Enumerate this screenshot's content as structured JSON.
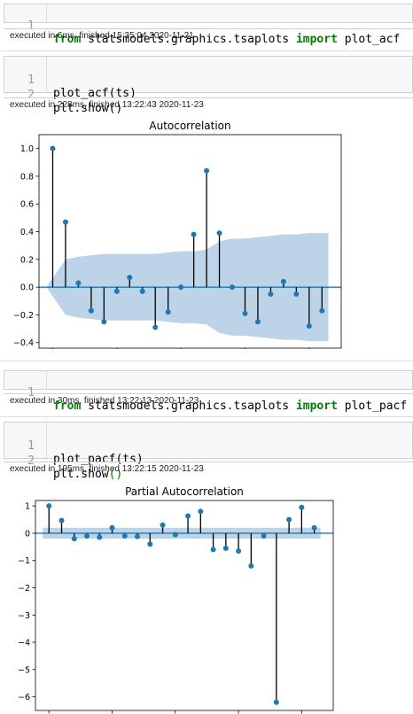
{
  "cells": [
    {
      "lines": [
        {
          "num": "1",
          "parts": [
            {
              "t": "from",
              "c": "kw"
            },
            {
              "t": " statsmodels.graphics.tsaplots ",
              "c": ""
            },
            {
              "t": "import",
              "c": "kw"
            },
            {
              "t": " plot_acf",
              "c": ""
            }
          ]
        }
      ],
      "exec": "executed in 6ms, finished 15:35:04 2020-11-21"
    },
    {
      "lines": [
        {
          "num": "1",
          "parts": [
            {
              "t": "plot_acf(ts)",
              "c": ""
            }
          ]
        },
        {
          "num": "2",
          "parts": [
            {
              "t": "plt.show()",
              "c": ""
            }
          ]
        }
      ],
      "exec": "executed in 228ms, finished 13:22:43 2020-11-23"
    },
    {
      "lines": [
        {
          "num": "1",
          "parts": [
            {
              "t": "from",
              "c": "kw"
            },
            {
              "t": " statsmodels.graphics.tsaplots ",
              "c": ""
            },
            {
              "t": "import",
              "c": "kw"
            },
            {
              "t": " plot_pacf",
              "c": ""
            }
          ]
        }
      ],
      "exec": "executed in 30ms, finished 13:22:13 2020-11-23"
    },
    {
      "lines": [
        {
          "num": "1",
          "parts": [
            {
              "t": "plot_pacf(ts)",
              "c": ""
            }
          ]
        },
        {
          "num": "2",
          "parts": [
            {
              "t": "plt.show",
              "c": ""
            },
            {
              "t": "()",
              "c": "pg"
            }
          ]
        }
      ],
      "exec": "executed in 195ms, finished 13:22:15 2020-11-23"
    }
  ],
  "colors": {
    "stem": "#000000",
    "marker": "#1f77b4",
    "band": "#bcd3e8",
    "zero": "#1f77b4"
  },
  "chart_data": [
    {
      "type": "stem",
      "title": "Autocorrelation",
      "xlabel": "",
      "ylabel": "",
      "xlim": [
        -1.07,
        22.5
      ],
      "ylim": [
        -0.44,
        1.1
      ],
      "xticks": [
        0,
        5,
        10,
        15,
        20
      ],
      "yticks": [
        -0.4,
        -0.2,
        0.0,
        0.2,
        0.4,
        0.6,
        0.8,
        1.0
      ],
      "ytick_labels": [
        "−0.4",
        "−0.2",
        "0.0",
        "0.2",
        "0.4",
        "0.6",
        "0.8",
        "1.0"
      ],
      "x": [
        0,
        1,
        2,
        3,
        4,
        5,
        6,
        7,
        8,
        9,
        10,
        11,
        12,
        13,
        14,
        15,
        16,
        17,
        18,
        19,
        20,
        21
      ],
      "values": [
        1.0,
        0.47,
        0.03,
        -0.17,
        -0.25,
        -0.03,
        0.07,
        -0.03,
        -0.29,
        -0.18,
        0.0,
        0.38,
        0.84,
        0.39,
        0.0,
        -0.19,
        -0.25,
        -0.05,
        0.04,
        -0.05,
        -0.28,
        -0.17
      ],
      "confidence_band": [
        0.0,
        0.2,
        0.22,
        0.23,
        0.24,
        0.24,
        0.24,
        0.24,
        0.24,
        0.25,
        0.26,
        0.26,
        0.27,
        0.33,
        0.35,
        0.35,
        0.36,
        0.37,
        0.38,
        0.38,
        0.39,
        0.39
      ],
      "grid": false
    },
    {
      "type": "stem",
      "title": "Partial Autocorrelation",
      "xlabel": "",
      "ylabel": "",
      "xlim": [
        -1.07,
        22.5
      ],
      "ylim": [
        -6.5,
        1.2
      ],
      "xticks": [
        0,
        5,
        10,
        15,
        20
      ],
      "yticks": [
        -6,
        -5,
        -4,
        -3,
        -2,
        -1,
        0,
        1
      ],
      "ytick_labels": [
        "−6",
        "−5",
        "−4",
        "−3",
        "−2",
        "−1",
        "0",
        "1"
      ],
      "x": [
        0,
        1,
        2,
        3,
        4,
        5,
        6,
        7,
        8,
        9,
        10,
        11,
        12,
        13,
        14,
        15,
        16,
        17,
        18,
        19,
        20,
        21
      ],
      "values": [
        1.0,
        0.47,
        -0.2,
        -0.1,
        -0.15,
        0.2,
        -0.1,
        -0.12,
        -0.4,
        0.3,
        -0.05,
        0.63,
        0.8,
        -0.6,
        -0.55,
        -0.65,
        -1.2,
        -0.1,
        -6.2,
        0.5,
        0.95,
        0.2
      ],
      "confidence_band": [
        0.2,
        0.2,
        0.2,
        0.2,
        0.2,
        0.2,
        0.2,
        0.2,
        0.2,
        0.2,
        0.2,
        0.2,
        0.2,
        0.2,
        0.2,
        0.2,
        0.2,
        0.2,
        0.2,
        0.2,
        0.2,
        0.2
      ],
      "grid": false
    }
  ]
}
